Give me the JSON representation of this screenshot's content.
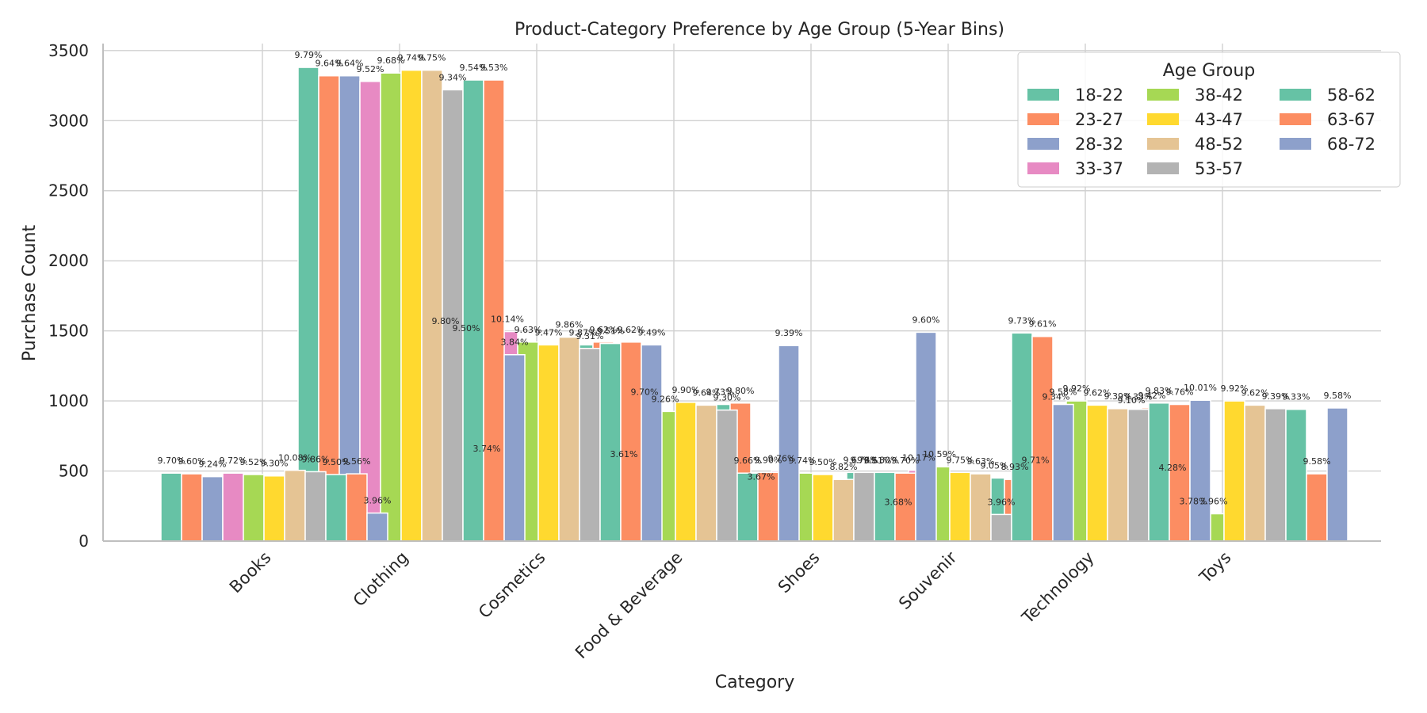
{
  "chart_data": {
    "type": "bar",
    "title": "Product-Category Preference by Age Group (5-Year Bins)",
    "xlabel": "Category",
    "ylabel": "Purchase Count",
    "ylim": [
      0,
      3550
    ],
    "yticks": [
      0,
      500,
      1000,
      1500,
      2000,
      2500,
      3000,
      3500
    ],
    "grid": true,
    "legend": {
      "title": "Age Group",
      "placement": "top-right",
      "columns": 3
    },
    "categories": [
      "Books",
      "Clothing",
      "Cosmetics",
      "Food & Beverage",
      "Shoes",
      "Souvenir",
      "Technology",
      "Toys"
    ],
    "series": [
      {
        "name": "18-22",
        "color": "#66c2a5",
        "values": [
          485,
          3380,
          1480,
          1400,
          975,
          490,
          450,
          915
        ],
        "labels": [
          "9.70%",
          "9.79%",
          "9.80%",
          "9.87%",
          "9.73%",
          "9.69%",
          "9.05%",
          "9.10%"
        ]
      },
      {
        "name": "23-27",
        "color": "#fc8d62",
        "values": [
          480,
          3320,
          1430,
          1420,
          985,
          485,
          440,
          950
        ],
        "labels": [
          "9.60%",
          "9.64%",
          "9.50%",
          "9.62%",
          "9.80%",
          "9.51%",
          "8.93%",
          "9.42%"
        ]
      },
      {
        "name": "28-32",
        "color": "#8da0cb",
        "values": [
          460,
          3320,
          570,
          530,
          370,
          190,
          490,
          435
        ],
        "labels": [
          "9.24%",
          "9.64%",
          "3.74%",
          "3.61%",
          "3.67%",
          "3.68%",
          "9.71%",
          "4.28%"
        ]
      },
      {
        "name": "33-37",
        "color": "#e78ac3",
        "values": [
          485,
          3280,
          1495,
          975,
          500,
          505,
          940,
          195
        ],
        "labels": [
          "9.72%",
          "9.52%",
          "10.14%",
          "9.70%",
          "9.76%",
          "10.17%",
          "9.34%",
          "3.78%"
        ]
      },
      {
        "name": "38-42",
        "color": "#a6d854",
        "values": [
          475,
          3340,
          1420,
          925,
          485,
          530,
          1000,
          195
        ],
        "labels": [
          "9.52%",
          "9.68%",
          "9.63%",
          "9.26%",
          "9.74%",
          "10.59%",
          "9.92%",
          "3.96%"
        ]
      },
      {
        "name": "43-47",
        "color": "#ffd92f",
        "values": [
          465,
          3360,
          1400,
          990,
          475,
          490,
          970,
          1000
        ],
        "labels": [
          "9.30%",
          "9.74%",
          "9.47%",
          "9.90%",
          "9.50%",
          "9.75%",
          "9.62%",
          "9.92%"
        ]
      },
      {
        "name": "48-52",
        "color": "#e5c494",
        "values": [
          505,
          3360,
          1455,
          970,
          440,
          480,
          945,
          970
        ],
        "labels": [
          "10.08%",
          "9.75%",
          "9.86%",
          "9.64%",
          "8.82%",
          "9.63%",
          "9.39%",
          "9.62%"
        ]
      },
      {
        "name": "53-57",
        "color": "#b3b3b3",
        "values": [
          495,
          3220,
          1375,
          935,
          490,
          190,
          940,
          945
        ],
        "labels": [
          "9.86%",
          "9.34%",
          "9.31%",
          "9.30%",
          "9.78%",
          "3.96%",
          "9.33%",
          "9.39%"
        ]
      },
      {
        "name": "58-62",
        "color": "#66c2a5",
        "values": [
          475,
          3290,
          1410,
          485,
          490,
          1485,
          985,
          940
        ],
        "labels": [
          "9.50%",
          "9.54%",
          "9.51%",
          "9.66%",
          "9.80%",
          "9.73%",
          "9.83%",
          "9.33%"
        ]
      },
      {
        "name": "63-67",
        "color": "#fc8d62",
        "values": [
          480,
          3290,
          1420,
          490,
          485,
          1460,
          975,
          480
        ],
        "labels": [
          "9.56%",
          "9.53%",
          "9.62%",
          "9.90%",
          "9.70%",
          "9.61%",
          "9.76%",
          "9.58%"
        ]
      },
      {
        "name": "68-72",
        "color": "#8da0cb",
        "values": [
          200,
          1330,
          1400,
          1395,
          1490,
          975,
          1005,
          950
        ],
        "labels": [
          "3.96%",
          "3.84%",
          "9.49%",
          "9.39%",
          "9.60%",
          "9.58%",
          "10.01%",
          "9.58%"
        ]
      }
    ]
  }
}
